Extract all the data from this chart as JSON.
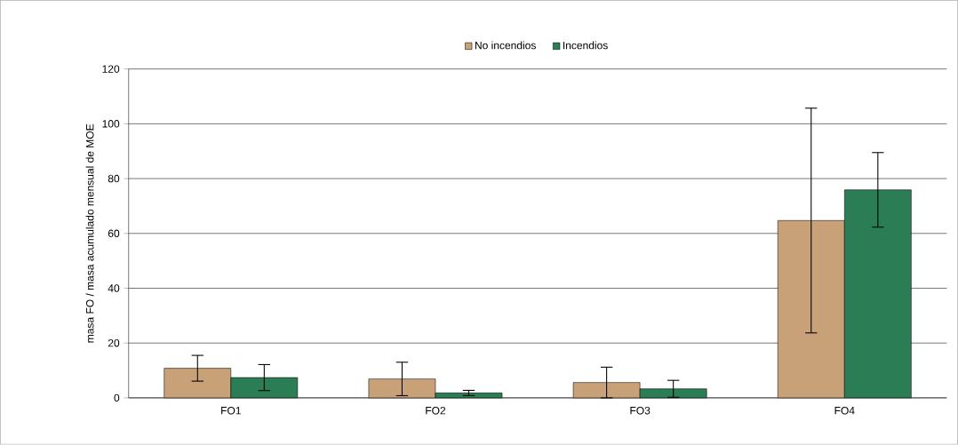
{
  "chart_data": {
    "type": "bar",
    "ylabel": "masa FO / masa acumulado mensual de MOE",
    "categories": [
      "FO1",
      "FO2",
      "FO3",
      "FO4"
    ],
    "series": [
      {
        "name": "No incendios",
        "color": "#c9a178",
        "values": [
          10.8,
          6.9,
          5.6,
          64.7
        ],
        "errors": [
          4.7,
          6.1,
          5.6,
          41
        ]
      },
      {
        "name": "Incendios",
        "color": "#2a7d55",
        "values": [
          7.4,
          1.8,
          3.3,
          75.9
        ],
        "errors": [
          4.75,
          0.95,
          3.1,
          13.6
        ]
      }
    ],
    "ylim": [
      0,
      120
    ],
    "yticks": [
      0,
      20,
      40,
      60,
      80,
      100,
      120
    ],
    "grid": "y",
    "legend": "top"
  }
}
